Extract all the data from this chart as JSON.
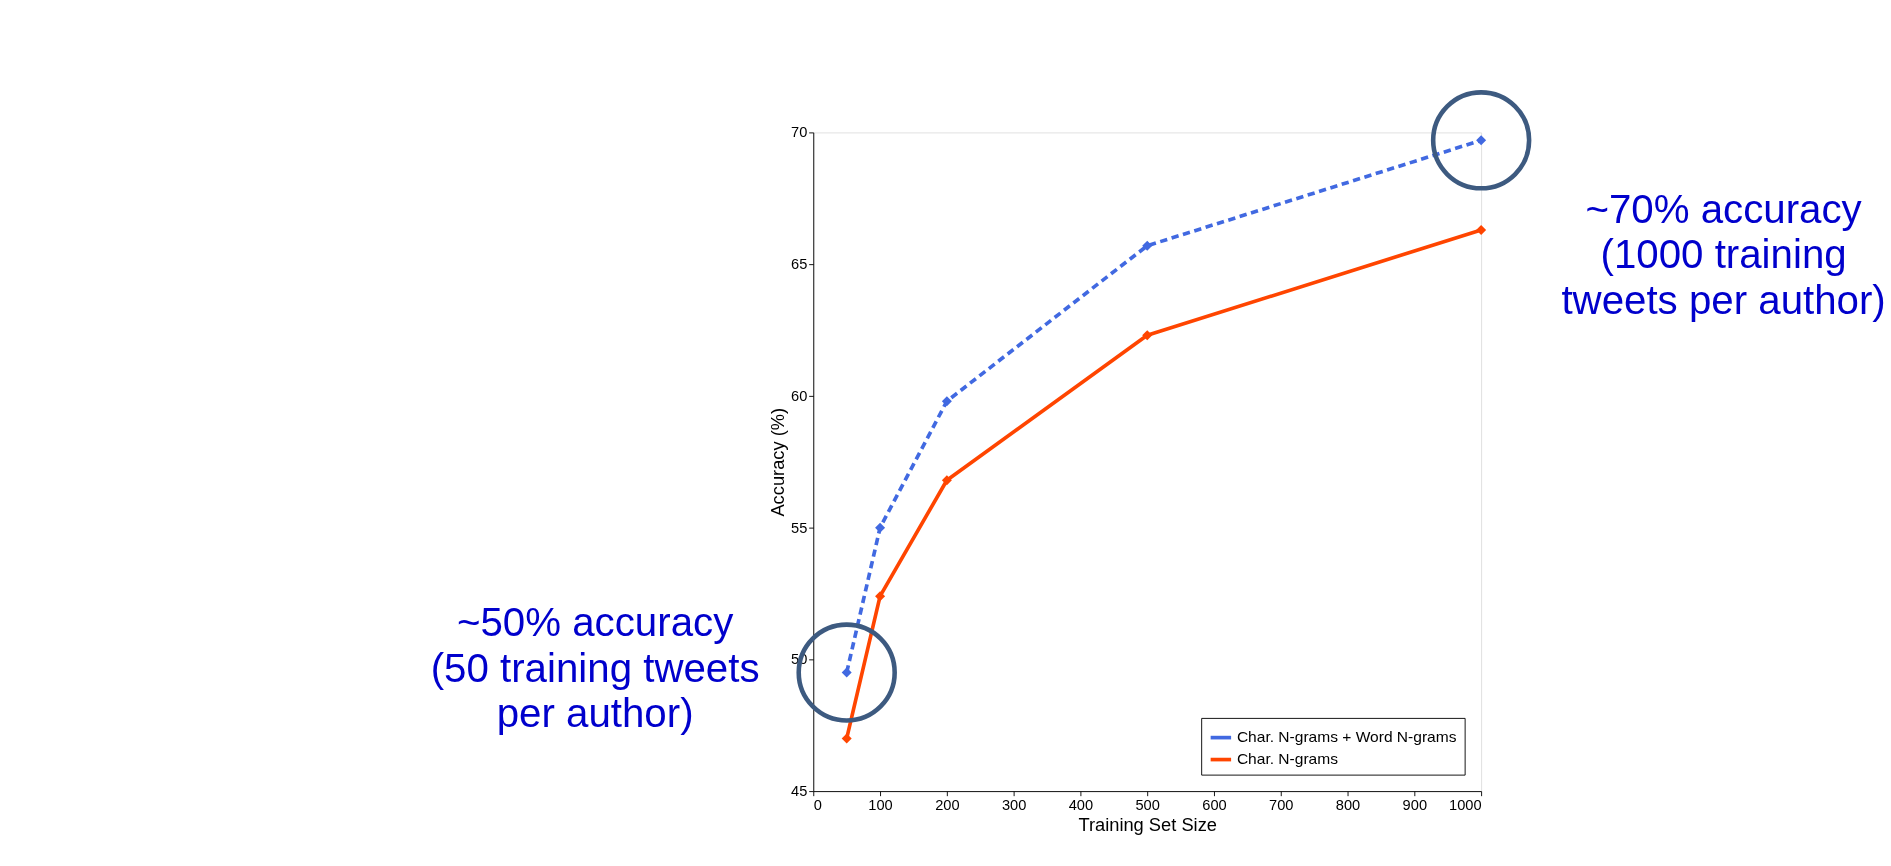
{
  "chart_data": {
    "type": "line",
    "xlabel": "Training Set Size",
    "ylabel": "Accuracy (%)",
    "x": [
      50,
      100,
      200,
      500,
      1000
    ],
    "series": [
      {
        "name": "Char. N-grams + Word N-grams",
        "color": "#4169e1",
        "line_style": "dashed",
        "values": [
          49.5,
          55.0,
          59.8,
          65.7,
          69.7
        ]
      },
      {
        "name": "Char. N-grams",
        "color": "#ff4500",
        "line_style": "solid",
        "values": [
          47.0,
          52.4,
          56.8,
          62.3,
          66.3
        ]
      }
    ],
    "xlim": [
      0,
      1000
    ],
    "xticks": [
      0,
      100,
      200,
      300,
      400,
      500,
      600,
      700,
      800,
      900,
      1000
    ],
    "ylim": [
      45,
      70
    ],
    "yticks": [
      45,
      50,
      55,
      60,
      65,
      70
    ],
    "marker": "diamond",
    "grid": false,
    "legend": "bottom right",
    "annotations": [
      {
        "text": "~50% accuracy\n(50 training tweets\nper author)",
        "x": 50,
        "y": 49.5
      },
      {
        "text": "~70% accuracy\n(1000 training\ntweets per author)",
        "x": 1000,
        "y": 69.7
      }
    ]
  }
}
